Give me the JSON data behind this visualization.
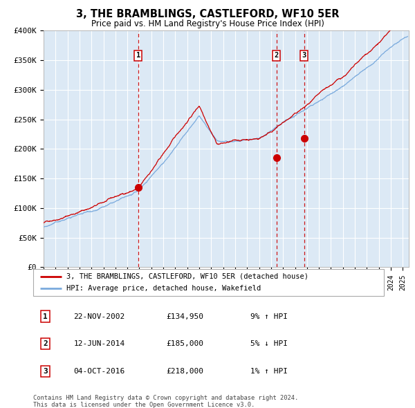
{
  "title": "3, THE BRAMBLINGS, CASTLEFORD, WF10 5ER",
  "subtitle": "Price paid vs. HM Land Registry's House Price Index (HPI)",
  "background_color": "#ffffff",
  "plot_bg_color": "#dce9f5",
  "red_line_color": "#cc0000",
  "blue_line_color": "#7aaadd",
  "sale_marker_color": "#cc0000",
  "vline_color": "#cc0000",
  "grid_color": "#ffffff",
  "ylim": [
    0,
    400000
  ],
  "yticks": [
    0,
    50000,
    100000,
    150000,
    200000,
    250000,
    300000,
    350000,
    400000
  ],
  "ytick_labels": [
    "£0",
    "£50K",
    "£100K",
    "£150K",
    "£200K",
    "£250K",
    "£300K",
    "£350K",
    "£400K"
  ],
  "sales": [
    {
      "label": "1",
      "date": "22-NOV-2002",
      "price": 134950,
      "x_year": 2002.9,
      "hpi_pct": "9%",
      "direction": "↑"
    },
    {
      "label": "2",
      "date": "12-JUN-2014",
      "price": 185000,
      "x_year": 2014.45,
      "hpi_pct": "5%",
      "direction": "↓"
    },
    {
      "label": "3",
      "date": "04-OCT-2016",
      "price": 218000,
      "x_year": 2016.75,
      "hpi_pct": "1%",
      "direction": "↑"
    }
  ],
  "legend_label_red": "3, THE BRAMBLINGS, CASTLEFORD, WF10 5ER (detached house)",
  "legend_label_blue": "HPI: Average price, detached house, Wakefield",
  "footer_text": "Contains HM Land Registry data © Crown copyright and database right 2024.\nThis data is licensed under the Open Government Licence v3.0.",
  "xmin": 1995.0,
  "xmax": 2025.5,
  "table_rows": [
    {
      "num": "1",
      "date": "22-NOV-2002",
      "price": "£134,950",
      "hpi": "9% ↑ HPI"
    },
    {
      "num": "2",
      "date": "12-JUN-2014",
      "price": "£185,000",
      "hpi": "5% ↓ HPI"
    },
    {
      "num": "3",
      "date": "04-OCT-2016",
      "price": "£218,000",
      "hpi": "1% ↑ HPI"
    }
  ]
}
